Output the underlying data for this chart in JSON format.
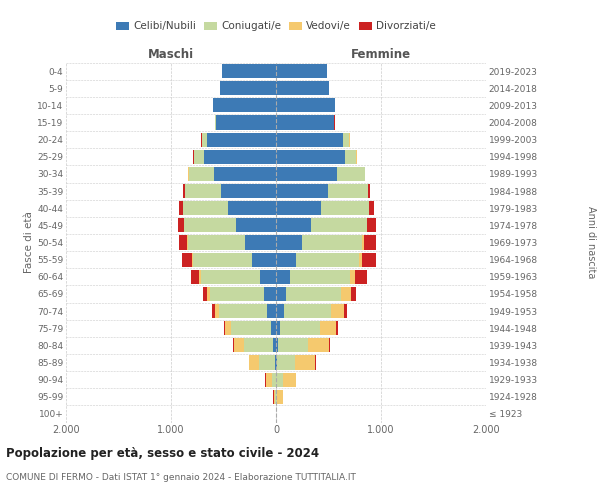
{
  "age_groups": [
    "100+",
    "95-99",
    "90-94",
    "85-89",
    "80-84",
    "75-79",
    "70-74",
    "65-69",
    "60-64",
    "55-59",
    "50-54",
    "45-49",
    "40-44",
    "35-39",
    "30-34",
    "25-29",
    "20-24",
    "15-19",
    "10-14",
    "5-9",
    "0-4"
  ],
  "birth_years": [
    "≤ 1923",
    "1924-1928",
    "1929-1933",
    "1934-1938",
    "1939-1943",
    "1944-1948",
    "1949-1953",
    "1954-1958",
    "1959-1963",
    "1964-1968",
    "1969-1973",
    "1974-1978",
    "1979-1983",
    "1984-1988",
    "1989-1993",
    "1994-1998",
    "1999-2003",
    "2004-2008",
    "2009-2013",
    "2014-2018",
    "2019-2023"
  ],
  "colors": {
    "celibi": "#3d7ab5",
    "coniugati": "#c5d9a0",
    "vedovi": "#f5c96e",
    "divorziati": "#cc2222"
  },
  "m_celibi": [
    0,
    1,
    4,
    14,
    28,
    52,
    90,
    115,
    155,
    230,
    295,
    380,
    455,
    520,
    595,
    685,
    655,
    575,
    600,
    535,
    510
  ],
  "m_coniugati": [
    0,
    4,
    38,
    145,
    275,
    375,
    455,
    515,
    560,
    560,
    545,
    495,
    430,
    350,
    238,
    95,
    48,
    8,
    4,
    1,
    0
  ],
  "m_vedovi": [
    0,
    18,
    58,
    98,
    98,
    58,
    38,
    28,
    18,
    8,
    4,
    4,
    1,
    1,
    1,
    4,
    4,
    1,
    0,
    0,
    0
  ],
  "m_divorziati": [
    0,
    1,
    1,
    4,
    8,
    12,
    22,
    38,
    78,
    98,
    78,
    58,
    38,
    18,
    8,
    4,
    4,
    1,
    0,
    0,
    0
  ],
  "f_celibi": [
    0,
    1,
    4,
    12,
    22,
    42,
    72,
    98,
    130,
    188,
    248,
    338,
    428,
    498,
    578,
    658,
    638,
    548,
    558,
    508,
    488
  ],
  "f_coniugati": [
    0,
    6,
    58,
    165,
    285,
    375,
    455,
    525,
    575,
    598,
    575,
    525,
    455,
    375,
    265,
    108,
    58,
    8,
    4,
    1,
    0
  ],
  "f_vedovi": [
    4,
    58,
    128,
    195,
    195,
    155,
    118,
    88,
    52,
    32,
    18,
    8,
    4,
    2,
    1,
    4,
    4,
    1,
    0,
    0,
    0
  ],
  "f_divorziati": [
    0,
    1,
    1,
    6,
    12,
    18,
    32,
    52,
    108,
    138,
    108,
    78,
    42,
    18,
    8,
    4,
    4,
    1,
    0,
    0,
    0
  ],
  "title": "Popolazione per età, sesso e stato civile - 2024",
  "subtitle": "COMUNE DI FERMO - Dati ISTAT 1° gennaio 2024 - Elaborazione TUTTITALIA.IT",
  "xlabel_maschi": "Maschi",
  "xlabel_femmine": "Femmine",
  "ylabel_left": "Fasce di età",
  "ylabel_right": "Anni di nascita",
  "bg_color": "#ffffff"
}
